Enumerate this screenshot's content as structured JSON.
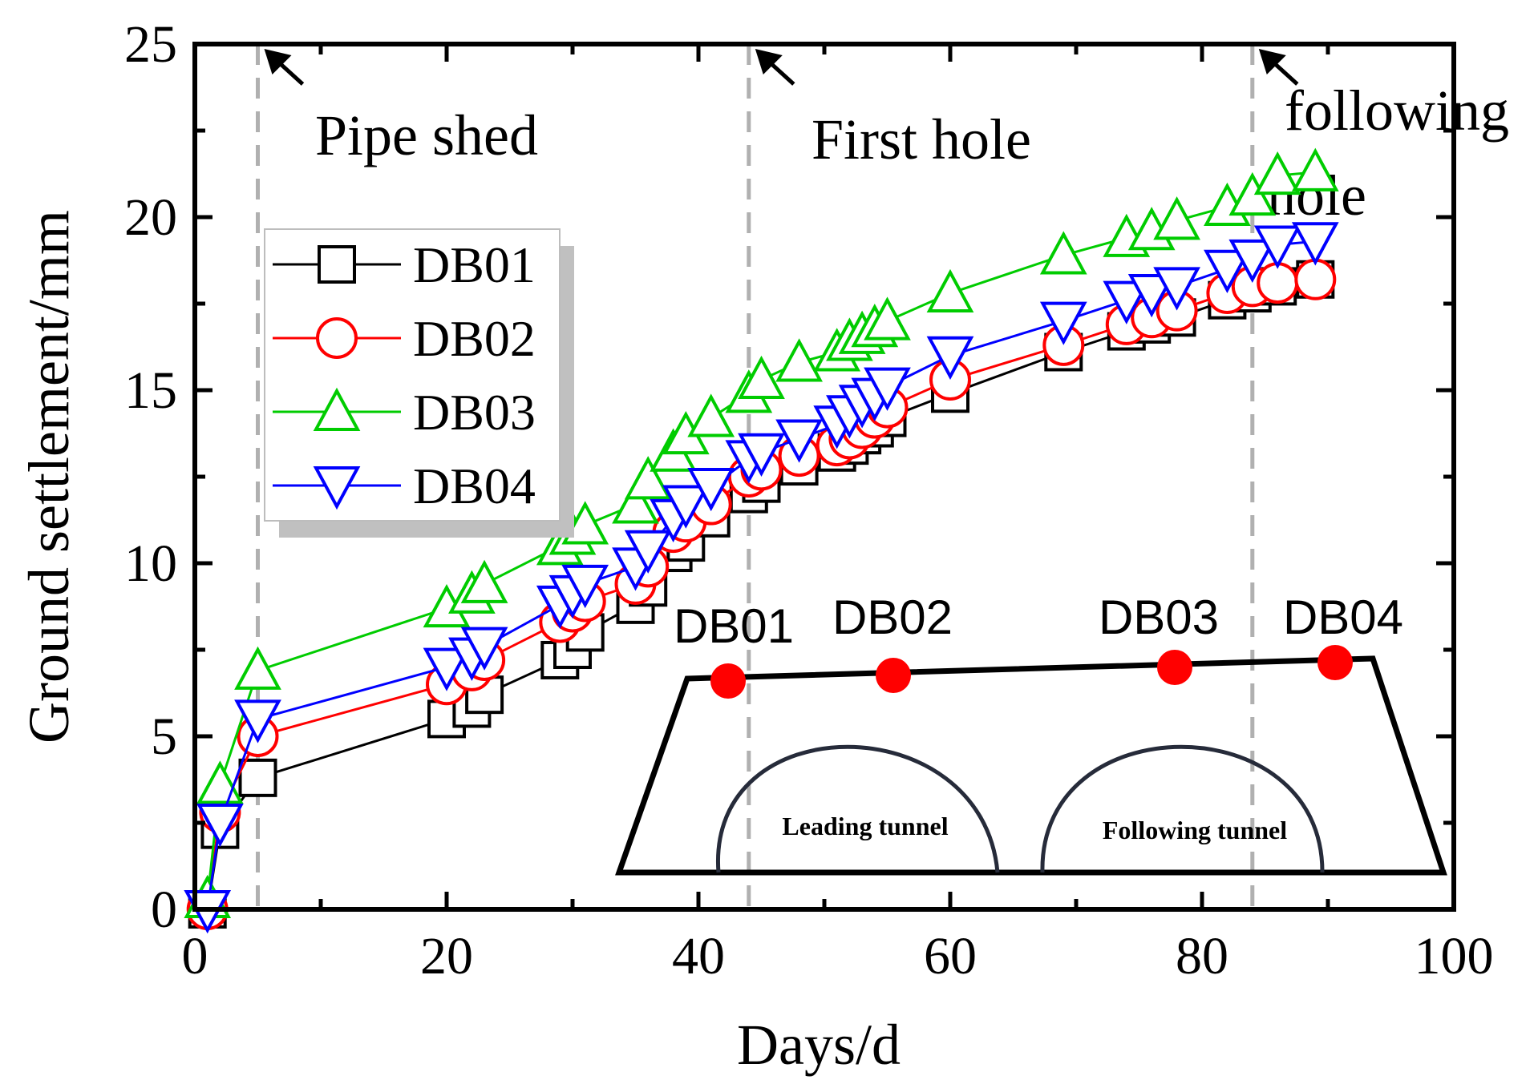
{
  "chart_data": {
    "type": "line",
    "xlabel": "Days/d",
    "ylabel": "Ground settlement/mm",
    "xlim": [
      0,
      100
    ],
    "ylim": [
      0,
      25
    ],
    "x_ticks": [
      "0",
      "20",
      "40",
      "60",
      "80",
      "100"
    ],
    "y_ticks": [
      "0",
      "5",
      "10",
      "15",
      "20",
      "25"
    ],
    "grid": false,
    "legend_position": "upper-left",
    "annotations": {
      "phase_lines": [
        {
          "x": 5,
          "label": "Pipe shed"
        },
        {
          "x": 44,
          "label": "First hole"
        },
        {
          "x": 84,
          "label_line1": "following",
          "label_line2": "hole"
        }
      ]
    },
    "series": [
      {
        "name": "DB01",
        "color": "#000000",
        "marker": "square",
        "x": [
          1,
          2,
          5,
          20,
          22,
          23,
          29,
          30,
          31,
          35,
          36,
          38,
          39,
          41,
          44,
          45,
          48,
          51,
          52,
          53,
          54,
          55,
          60,
          69,
          74,
          76,
          78,
          82,
          84,
          86,
          89
        ],
        "y": [
          0,
          2.3,
          3.8,
          5.5,
          5.8,
          6.2,
          7.2,
          7.5,
          8.0,
          8.8,
          9.3,
          10.3,
          10.6,
          11.3,
          12.0,
          12.3,
          12.8,
          13.2,
          13.4,
          13.7,
          13.9,
          14.2,
          14.9,
          16.1,
          16.7,
          16.9,
          17.1,
          17.6,
          17.8,
          18.0,
          18.2
        ]
      },
      {
        "name": "DB02",
        "color": "#ff0000",
        "marker": "circle",
        "x": [
          1,
          2,
          5,
          20,
          22,
          23,
          29,
          30,
          31,
          35,
          36,
          38,
          39,
          41,
          44,
          45,
          48,
          51,
          52,
          53,
          54,
          55,
          60,
          69,
          74,
          76,
          78,
          82,
          84,
          86,
          89
        ],
        "y": [
          0,
          2.8,
          5.0,
          6.5,
          6.9,
          7.2,
          8.3,
          8.6,
          8.9,
          9.4,
          9.9,
          10.9,
          11.2,
          11.7,
          12.5,
          12.7,
          13.1,
          13.4,
          13.6,
          13.9,
          14.2,
          14.5,
          15.3,
          16.3,
          16.9,
          17.1,
          17.3,
          17.8,
          18.0,
          18.1,
          18.2
        ]
      },
      {
        "name": "DB03",
        "color": "#00cc00",
        "marker": "triangle-up",
        "x": [
          1,
          2,
          5,
          20,
          22,
          23,
          29,
          30,
          31,
          35,
          36,
          38,
          39,
          41,
          44,
          45,
          48,
          51,
          52,
          53,
          54,
          55,
          60,
          69,
          74,
          76,
          78,
          82,
          84,
          86,
          89
        ],
        "y": [
          0.3,
          3.6,
          6.9,
          8.7,
          9.1,
          9.4,
          10.5,
          10.8,
          11.1,
          11.7,
          12.4,
          13.2,
          13.7,
          14.2,
          14.9,
          15.3,
          15.8,
          16.1,
          16.4,
          16.6,
          16.8,
          17.0,
          17.8,
          18.9,
          19.4,
          19.6,
          19.9,
          20.3,
          20.6,
          21.2,
          21.3
        ]
      },
      {
        "name": "DB04",
        "color": "#0000ff",
        "marker": "triangle-down",
        "x": [
          1,
          2,
          5,
          20,
          22,
          23,
          29,
          30,
          31,
          35,
          36,
          38,
          39,
          41,
          44,
          45,
          48,
          51,
          52,
          53,
          54,
          55,
          60,
          69,
          74,
          76,
          78,
          82,
          84,
          86,
          89
        ],
        "y": [
          0,
          2.5,
          5.5,
          7.0,
          7.3,
          7.6,
          8.8,
          9.1,
          9.4,
          9.9,
          10.4,
          11.3,
          11.7,
          12.2,
          13.0,
          13.2,
          13.6,
          14.0,
          14.3,
          14.6,
          14.8,
          15.1,
          16.0,
          17.0,
          17.6,
          17.8,
          18.0,
          18.5,
          18.8,
          19.2,
          19.3
        ]
      }
    ],
    "inset": {
      "gauge_points": [
        "DB01",
        "DB02",
        "DB03",
        "DB04"
      ],
      "tunnels": [
        "Leading tunnel",
        "Following tunnel"
      ],
      "gauge_color": "#ff0000"
    }
  }
}
